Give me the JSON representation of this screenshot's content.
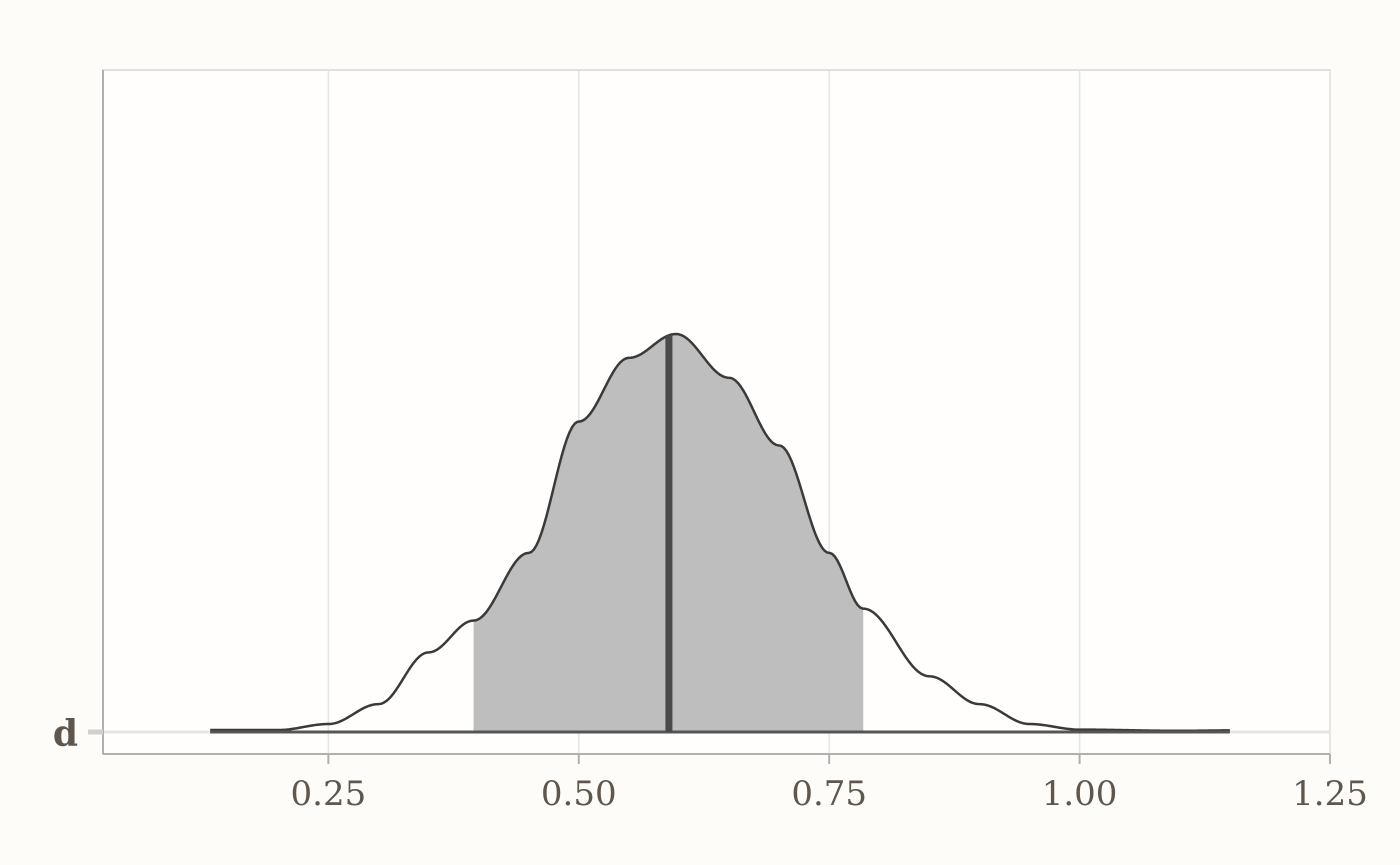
{
  "chart_data": {
    "type": "area",
    "title": "",
    "xlabel": "",
    "ylabel": "",
    "xlim": [
      0.025,
      1.25
    ],
    "x_ticks": [
      {
        "value": 0.25,
        "label": "0.25"
      },
      {
        "value": 0.5,
        "label": "0.50"
      },
      {
        "value": 0.75,
        "label": "0.75"
      },
      {
        "value": 1.0,
        "label": "1.00"
      },
      {
        "value": 1.25,
        "label": "1.25"
      }
    ],
    "categories": [
      "d"
    ],
    "grid": true,
    "density": {
      "x": [
        0.132,
        0.2,
        0.25,
        0.3,
        0.35,
        0.395,
        0.45,
        0.5,
        0.55,
        0.597,
        0.65,
        0.7,
        0.75,
        0.784,
        0.85,
        0.9,
        0.95,
        1.0,
        1.1,
        1.15
      ],
      "y": [
        0.005,
        0.005,
        0.02,
        0.07,
        0.2,
        0.28,
        0.45,
        0.78,
        0.94,
        1.0,
        0.89,
        0.72,
        0.45,
        0.31,
        0.14,
        0.07,
        0.02,
        0.006,
        0.003,
        0.004
      ]
    },
    "interval": [
      0.395,
      0.784
    ],
    "median": 0.59,
    "colors": {
      "background": "#fdfcf9",
      "panel": "#fffefc",
      "interval_fill": "#bebebe",
      "outline": "#3a3a3a",
      "median_line": "#4a4a4a",
      "grid": "#e4e4e4",
      "axis": "#b0b0b0",
      "text": "#5f564d"
    }
  }
}
